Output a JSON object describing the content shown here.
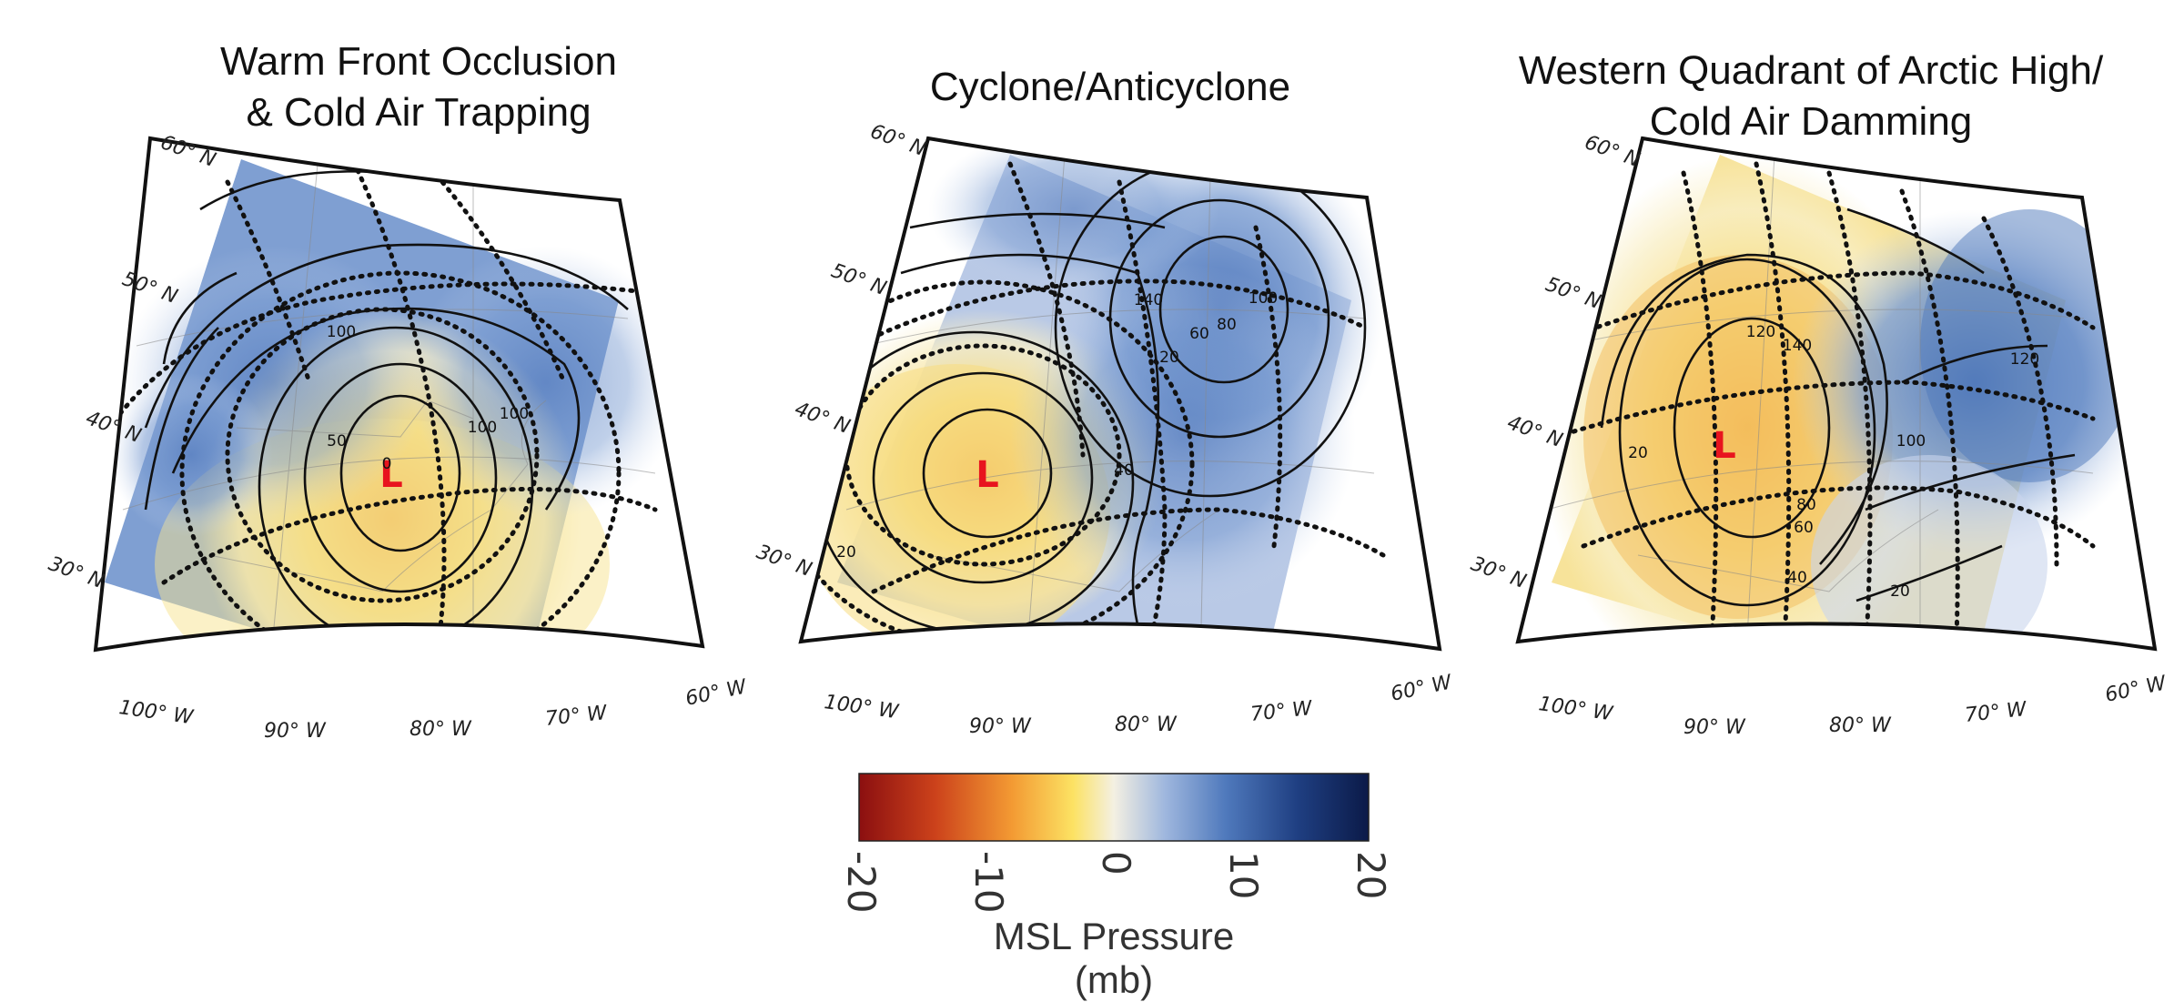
{
  "panels": [
    {
      "title_lines": [
        "Warm Front Occlusion",
        "& Cold Air Trapping"
      ],
      "low_marker": "L",
      "contour_labels": [
        "100",
        "50",
        "0",
        "100",
        "100"
      ],
      "lat_labels": [
        "60° N",
        "50° N",
        "40° N",
        "30° N"
      ],
      "lon_labels": [
        "100° W",
        "90° W",
        "80° W",
        "70° W",
        "60° W"
      ]
    },
    {
      "title_lines": [
        "Cyclone/Anticyclone"
      ],
      "low_marker": "L",
      "contour_labels": [
        "140",
        "100",
        "60",
        "80",
        "20",
        "40",
        "20"
      ],
      "lat_labels": [
        "60° N",
        "50° N",
        "40° N",
        "30° N"
      ],
      "lon_labels": [
        "100° W",
        "90° W",
        "80° W",
        "70° W",
        "60° W"
      ]
    },
    {
      "title_lines": [
        "Western Quadrant of Arctic High/",
        "Cold Air Damming"
      ],
      "low_marker": "L",
      "contour_labels": [
        "120",
        "140",
        "120",
        "20",
        "100",
        "80",
        "60",
        "40",
        "20"
      ],
      "lat_labels": [
        "60° N",
        "50° N",
        "40° N",
        "30° N"
      ],
      "lon_labels": [
        "100° W",
        "90° W",
        "80° W",
        "70° W",
        "60° W"
      ]
    }
  ],
  "colorbar": {
    "label": "MSL Pressure (mb)",
    "ticks": [
      "-20",
      "-10",
      "0",
      "10",
      "20"
    ],
    "range": [
      -20,
      20
    ],
    "colors": [
      "#8b0f10",
      "#c8411a",
      "#f08a2a",
      "#fce263",
      "#f4f0e2",
      "#8eaad6",
      "#4e78bb",
      "#1f3f82",
      "#0b1a48"
    ]
  },
  "colors": {
    "warm_fill": "#f6d978",
    "cold_fill": "#6a8fcc",
    "low_marker": "#e8141e",
    "contour": "#111111"
  }
}
